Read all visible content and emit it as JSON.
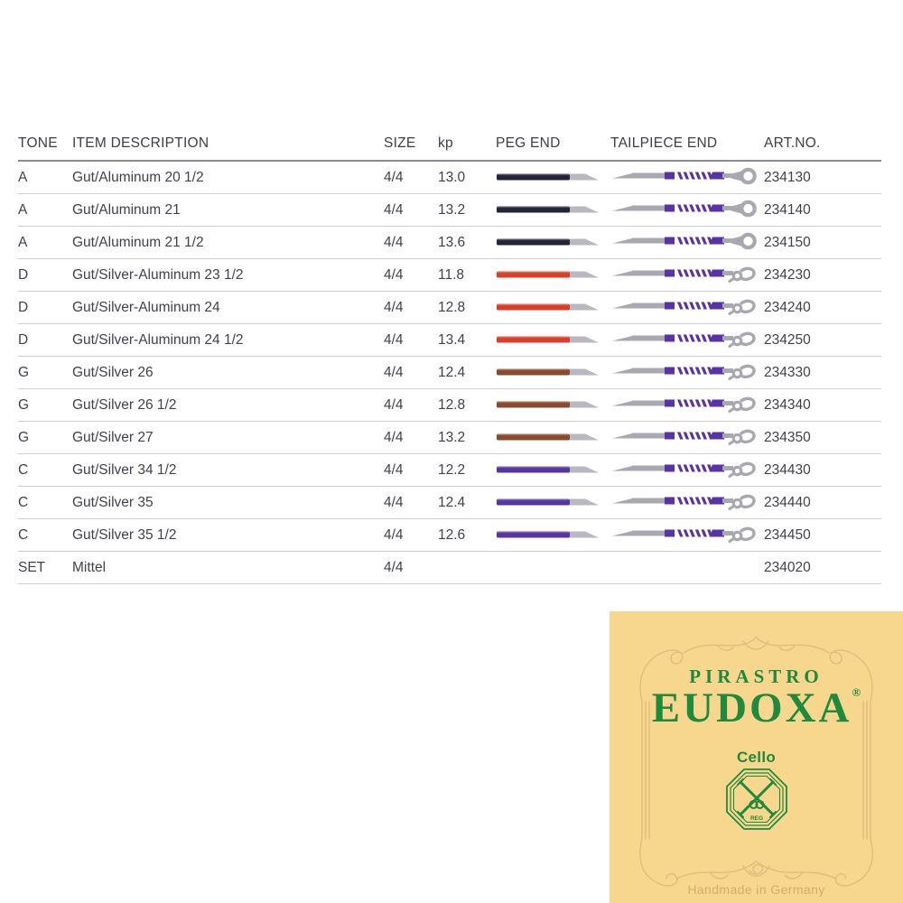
{
  "table": {
    "headers": {
      "tone": "TONE",
      "item_description": "ITEM DESCRIPTION",
      "size": "SIZE",
      "kp": "kp",
      "peg_end": "PEG END",
      "tailpiece_end": "TAILPIECE END",
      "art_no": "ART.NO."
    },
    "rows": [
      {
        "tone": "A",
        "item": "Gut/Aluminum 20 1/2",
        "size": "4/4",
        "kp": "13.0",
        "peg_color": "#23233a",
        "tailpiece_end": "ring",
        "art_no": "234130"
      },
      {
        "tone": "A",
        "item": "Gut/Aluminum 21",
        "size": "4/4",
        "kp": "13.2",
        "peg_color": "#23233a",
        "tailpiece_end": "ring",
        "art_no": "234140"
      },
      {
        "tone": "A",
        "item": "Gut/Aluminum 21 1/2",
        "size": "4/4",
        "kp": "13.6",
        "peg_color": "#23233a",
        "tailpiece_end": "ring",
        "art_no": "234150"
      },
      {
        "tone": "D",
        "item": "Gut/Silver-Aluminum 23 1/2",
        "size": "4/4",
        "kp": "11.8",
        "peg_color": "#d6402a",
        "tailpiece_end": "knot",
        "art_no": "234230"
      },
      {
        "tone": "D",
        "item": "Gut/Silver-Aluminum 24",
        "size": "4/4",
        "kp": "12.8",
        "peg_color": "#d6402a",
        "tailpiece_end": "knot",
        "art_no": "234240"
      },
      {
        "tone": "D",
        "item": "Gut/Silver-Aluminum 24 1/2",
        "size": "4/4",
        "kp": "13.4",
        "peg_color": "#d6402a",
        "tailpiece_end": "knot",
        "art_no": "234250"
      },
      {
        "tone": "G",
        "item": "Gut/Silver 26",
        "size": "4/4",
        "kp": "12.4",
        "peg_color": "#8a4a2c",
        "tailpiece_end": "knot",
        "art_no": "234330"
      },
      {
        "tone": "G",
        "item": "Gut/Silver 26 1/2",
        "size": "4/4",
        "kp": "12.8",
        "peg_color": "#8a4a2c",
        "tailpiece_end": "knot",
        "art_no": "234340"
      },
      {
        "tone": "G",
        "item": "Gut/Silver 27",
        "size": "4/4",
        "kp": "13.2",
        "peg_color": "#8a4a2c",
        "tailpiece_end": "knot",
        "art_no": "234350"
      },
      {
        "tone": "C",
        "item": "Gut/Silver 34 1/2",
        "size": "4/4",
        "kp": "12.2",
        "peg_color": "#5536a2",
        "tailpiece_end": "knot",
        "art_no": "234430"
      },
      {
        "tone": "C",
        "item": "Gut/Silver 35",
        "size": "4/4",
        "kp": "12.4",
        "peg_color": "#5536a2",
        "tailpiece_end": "knot",
        "art_no": "234440"
      },
      {
        "tone": "C",
        "item": "Gut/Silver 35 1/2",
        "size": "4/4",
        "kp": "12.6",
        "peg_color": "#5536a2",
        "tailpiece_end": "knot",
        "art_no": "234450"
      },
      {
        "tone": "SET",
        "item": "Mittel",
        "size": "4/4",
        "kp": "",
        "peg_color": null,
        "tailpiece_end": "none",
        "art_no": "234020"
      }
    ]
  },
  "graphics": {
    "string_gray": "#a9a8b1",
    "tip_gray": "#b9b8c0",
    "winding_purple": "#5733a6",
    "header_rule": "#8b8b94",
    "row_rule": "#cfcfd4",
    "text_color": "#41414c"
  },
  "label": {
    "brand": "PIRASTRO",
    "product": "EUDOXA",
    "reg_mark": "®",
    "instrument": "Cello",
    "emblem_text": "REG",
    "footer": "Handmade in Germany",
    "colors": {
      "background": "#f7d78e",
      "green": "#1e8a3d",
      "ornament": "#dcbb7d",
      "footer_text": "#d2ac6c"
    }
  }
}
